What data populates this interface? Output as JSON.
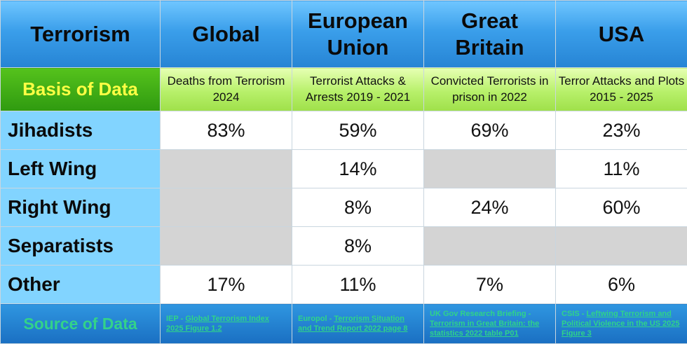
{
  "chart_data": {
    "type": "table",
    "title": "",
    "corner_label": "Terrorism",
    "regions": [
      {
        "name": "Global",
        "basis": "Deaths from Terrorism 2024",
        "source_org": "IEP - ",
        "source_title": "Global Terrorism Index 2025 Figure 1.2"
      },
      {
        "name": "European Union",
        "basis": "Terrorist Attacks & Arrests 2019 - 2021",
        "source_org": "Europol - ",
        "source_title": "Terrorism Situation and Trend Report 2022 page 8"
      },
      {
        "name": "Great Britain",
        "basis": "Convicted Terrorists in prison in 2022",
        "source_org": "UK Gov Research Briefing - ",
        "source_title": "Terrorism in Great Britain: the statistics 2022 table P01"
      },
      {
        "name": "USA",
        "basis": "Terror Attacks and Plots 2015 - 2025",
        "source_org": "CSIS - ",
        "source_title": "Leftwing Terrorism and Political Violence in the US 2025 Figure 3"
      }
    ],
    "basis_label": "Basis of Data",
    "source_label": "Source of Data",
    "rows": [
      {
        "label": "Jihadists",
        "values": [
          "83%",
          "59%",
          "69%",
          "23%"
        ]
      },
      {
        "label": "Left Wing",
        "values": [
          null,
          "14%",
          null,
          "11%"
        ]
      },
      {
        "label": "Right Wing",
        "values": [
          null,
          "8%",
          "24%",
          "60%"
        ]
      },
      {
        "label": "Separatists",
        "values": [
          null,
          "8%",
          null,
          null
        ]
      },
      {
        "label": "Other",
        "values": [
          "17%",
          "11%",
          "7%",
          "6%"
        ]
      }
    ]
  },
  "colors": {
    "header_blue": "#3a9eea",
    "basis_green": "#2f9a10",
    "basis_text_yellow": "#ffff44",
    "row_label_blue": "#82d4ff",
    "empty_gray": "#d4d4d4",
    "source_text_green": "#2fd489"
  }
}
